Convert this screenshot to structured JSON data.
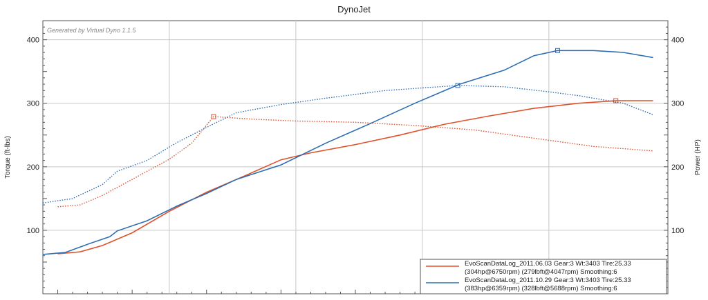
{
  "chart_data": {
    "type": "line",
    "title": "DynoJet",
    "watermark": "Generated by Virtual Dyno 1.1.5",
    "ylabel_left": "Torque (ft-lbs)",
    "ylabel_right": "Power (HP)",
    "xlabel": "",
    "x_unit": "rpm",
    "xlim": [
      2900,
      7100
    ],
    "ylim": [
      0,
      430
    ],
    "y_ticks": [
      100,
      200,
      300,
      400
    ],
    "y_tick_labels": [
      "100",
      "200",
      "300",
      "400"
    ],
    "x_major_gridlines": [
      3750,
      4600,
      5450,
      6300
    ],
    "grid": true,
    "legend_position": "bottom-right",
    "colors": {
      "red": "#e0502a",
      "blue": "#2d6db3",
      "grid": "#c8c8c8"
    },
    "legend": [
      {
        "color": "#e0502a",
        "line1": "EvoScanDataLog_2011.06.03 Gear:3 Wt:3403 Tire:25.33",
        "line2": "(304hp@6750rpm) (279lbft@4047rpm) Smoothing:6"
      },
      {
        "color": "#2d6db3",
        "line1": "EvoScanDataLog_2011.10.29 Gear:3 Wt:3403 Tire:25.33",
        "line2": "(383hp@6359rpm) (328lbft@5688rpm) Smoothing:6"
      }
    ],
    "series": [
      {
        "color": "#e0502a",
        "style": "solid",
        "quantity": "power",
        "x": [
          3000,
          3150,
          3300,
          3500,
          3750,
          4000,
          4250,
          4500,
          4700,
          5000,
          5300,
          5600,
          5900,
          6200,
          6500,
          6750,
          7000
        ],
        "values": [
          63,
          66,
          76,
          96,
          130,
          160,
          185,
          211,
          222,
          235,
          250,
          267,
          280,
          292,
          300,
          304,
          304
        ],
        "peak": {
          "x": 6750,
          "y": 304
        }
      },
      {
        "color": "#e0502a",
        "style": "dotted",
        "quantity": "torque",
        "x": [
          3000,
          3150,
          3300,
          3500,
          3750,
          3900,
          4047,
          4300,
          4600,
          5000,
          5400,
          5800,
          6200,
          6600,
          7000
        ],
        "values": [
          137,
          140,
          155,
          180,
          212,
          237,
          279,
          275,
          272,
          270,
          265,
          258,
          245,
          232,
          225
        ],
        "peak": {
          "x": 4047,
          "y": 279
        }
      },
      {
        "color": "#2d6db3",
        "style": "solid",
        "quantity": "power",
        "x": [
          2900,
          3050,
          3200,
          3350,
          3400,
          3600,
          3800,
          4000,
          4200,
          4500,
          4800,
          5100,
          5400,
          5700,
          6000,
          6200,
          6359,
          6600,
          6800,
          7000
        ],
        "values": [
          62,
          65,
          78,
          90,
          99,
          115,
          138,
          158,
          180,
          203,
          237,
          268,
          300,
          330,
          352,
          375,
          383,
          383,
          380,
          372
        ],
        "peak": {
          "x": 6359,
          "y": 383
        }
      },
      {
        "color": "#2d6db3",
        "style": "dotted",
        "quantity": "torque",
        "x": [
          2900,
          3100,
          3300,
          3400,
          3600,
          3800,
          4000,
          4200,
          4500,
          4800,
          5200,
          5688,
          6000,
          6300,
          6500,
          6800,
          7000
        ],
        "values": [
          143,
          150,
          172,
          193,
          210,
          238,
          262,
          285,
          298,
          308,
          320,
          328,
          326,
          318,
          312,
          300,
          282
        ],
        "peak": {
          "x": 5688,
          "y": 328
        }
      }
    ]
  }
}
